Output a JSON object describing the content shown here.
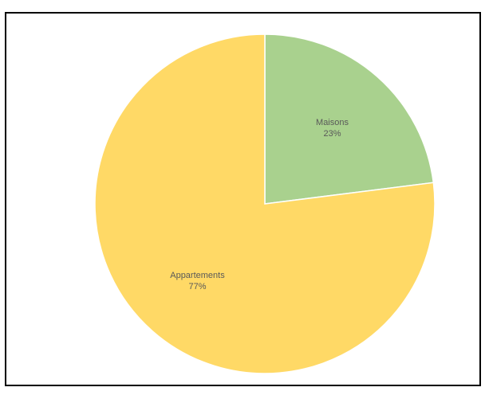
{
  "chart_data": {
    "type": "pie",
    "title": "",
    "slices": [
      {
        "label": "Maisons",
        "value": 23,
        "value_label": "23%",
        "color": "#a9d18e"
      },
      {
        "label": "Appartements",
        "value": 77,
        "value_label": "77%",
        "color": "#ffd966"
      }
    ],
    "start_angle": "12 o'clock",
    "direction": "clockwise",
    "legend": "none",
    "slice_border_color": "#ffffff"
  }
}
